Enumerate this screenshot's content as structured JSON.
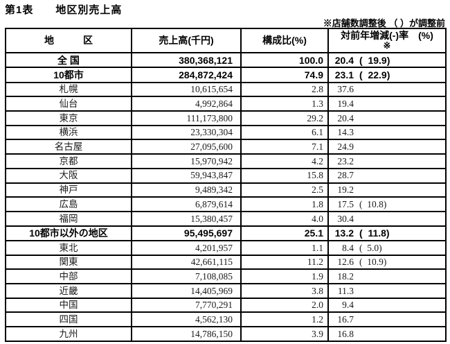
{
  "page": {
    "title": "第1表　　地区別売上高",
    "note": "※店舗数調整後 （ ）が調整前"
  },
  "table": {
    "headers": {
      "region": "地　　　区",
      "sales": "売上高(千円)",
      "share": "構成比(%)",
      "rate_line1": "対前年増減(-)率　(%)",
      "rate_line2": "※"
    },
    "rows": [
      {
        "region": "全 国",
        "sales": "380,368,121",
        "share": "100.0",
        "rate": "20.4",
        "rate_paren": "(  19.9)",
        "bold": true
      },
      {
        "region": "10都市",
        "sales": "284,872,424",
        "share": "74.9",
        "rate": "23.1",
        "rate_paren": "(  22.9)",
        "bold": true
      },
      {
        "region": "札幌",
        "sales": "10,615,654",
        "share": "2.8",
        "rate": "37.6"
      },
      {
        "region": "仙台",
        "sales": "4,992,864",
        "share": "1.3",
        "rate": "19.4"
      },
      {
        "region": "東京",
        "sales": "111,173,800",
        "share": "29.2",
        "rate": "20.4"
      },
      {
        "region": "横浜",
        "sales": "23,330,304",
        "share": "6.1",
        "rate": "14.3"
      },
      {
        "region": "名古屋",
        "sales": "27,095,600",
        "share": "7.1",
        "rate": "24.9"
      },
      {
        "region": "京都",
        "sales": "15,970,942",
        "share": "4.2",
        "rate": "23.2"
      },
      {
        "region": "大阪",
        "sales": "59,943,847",
        "share": "15.8",
        "rate": "28.7"
      },
      {
        "region": "神戸",
        "sales": "9,489,342",
        "share": "2.5",
        "rate": "19.2"
      },
      {
        "region": "広島",
        "sales": "6,879,614",
        "share": "1.8",
        "rate": "17.5",
        "rate_paren": "(  10.8)"
      },
      {
        "region": "福岡",
        "sales": "15,380,457",
        "share": "4.0",
        "rate": "30.4"
      },
      {
        "region": "10都市以外の地区",
        "sales": "95,495,697",
        "share": "25.1",
        "rate": "13.2",
        "rate_paren": "(  11.8)",
        "bold": true
      },
      {
        "region": "東北",
        "sales": "4,201,957",
        "share": "1.1",
        "rate": "8.4",
        "rate_paren": "(  5.0)"
      },
      {
        "region": "関東",
        "sales": "42,661,115",
        "share": "11.2",
        "rate": "12.6",
        "rate_paren": "(  10.9)"
      },
      {
        "region": "中部",
        "sales": "7,108,085",
        "share": "1.9",
        "rate": "18.2"
      },
      {
        "region": "近畿",
        "sales": "14,405,969",
        "share": "3.8",
        "rate": "11.3"
      },
      {
        "region": "中国",
        "sales": "7,770,291",
        "share": "2.0",
        "rate": "9.4"
      },
      {
        "region": "四国",
        "sales": "4,562,130",
        "share": "1.2",
        "rate": "16.7"
      },
      {
        "region": "九州",
        "sales": "14,786,150",
        "share": "3.9",
        "rate": "16.8"
      }
    ]
  }
}
